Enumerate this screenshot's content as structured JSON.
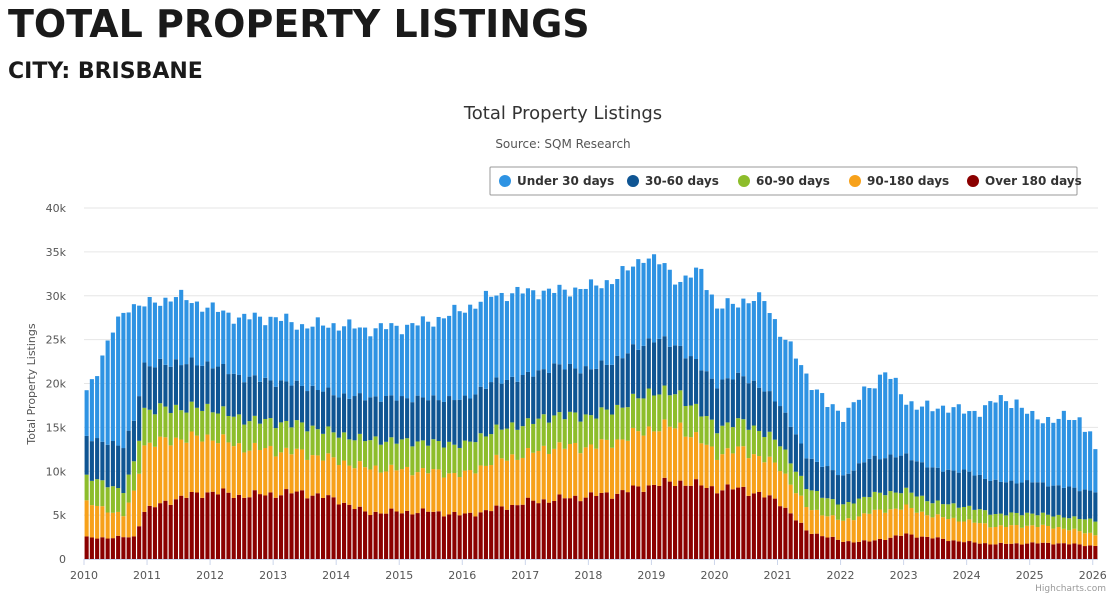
{
  "header": {
    "title": "TOTAL PROPERTY LISTINGS",
    "subtitle": "CITY: BRISBANE"
  },
  "credits": "Highcharts.com",
  "chart_data": {
    "type": "bar",
    "stacked": true,
    "title": "Total Property Listings",
    "subtitle": "Source: SQM Research",
    "ylabel": "Total Property Listings",
    "xlabel": "",
    "ylim": [
      0,
      40000
    ],
    "y_ticks": [
      0,
      5000,
      10000,
      15000,
      20000,
      25000,
      30000,
      35000,
      40000
    ],
    "y_tick_labels": [
      "0",
      "5k",
      "10k",
      "15k",
      "20k",
      "25k",
      "30k",
      "35k",
      "40k"
    ],
    "x_tick_labels": [
      "2010",
      "2011",
      "2012",
      "2013",
      "2014",
      "2015",
      "2016",
      "2017",
      "2018",
      "2019",
      "2020",
      "2021",
      "2022",
      "2023",
      "2024",
      "2025",
      "2026"
    ],
    "grid": true,
    "legend_position": "top-right",
    "start": "2010-01",
    "totals_anchor": [
      [
        "2010-01",
        18900
      ],
      [
        "2010-06",
        26000
      ],
      [
        "2010-09",
        28900
      ],
      [
        "2011-01",
        29000
      ],
      [
        "2011-06",
        30000
      ],
      [
        "2012-01",
        28500
      ],
      [
        "2012-06",
        27500
      ],
      [
        "2013-01",
        27500
      ],
      [
        "2013-06",
        26600
      ],
      [
        "2014-01",
        26700
      ],
      [
        "2014-06",
        26200
      ],
      [
        "2015-01",
        26500
      ],
      [
        "2015-06",
        27000
      ],
      [
        "2016-01",
        28500
      ],
      [
        "2016-06",
        30000
      ],
      [
        "2017-01",
        30500
      ],
      [
        "2017-06",
        30500
      ],
      [
        "2018-01",
        31000
      ],
      [
        "2018-06",
        32000
      ],
      [
        "2018-11",
        34500
      ],
      [
        "2019-03",
        33500
      ],
      [
        "2019-06",
        31500
      ],
      [
        "2019-10",
        33000
      ],
      [
        "2020-01",
        28500
      ],
      [
        "2020-06",
        29500
      ],
      [
        "2020-10",
        29500
      ],
      [
        "2021-01",
        26000
      ],
      [
        "2021-06",
        21000
      ],
      [
        "2021-10",
        17500
      ],
      [
        "2022-01",
        16500
      ],
      [
        "2022-06",
        19500
      ],
      [
        "2022-09",
        21500
      ],
      [
        "2023-01",
        18000
      ],
      [
        "2023-06",
        17000
      ],
      [
        "2023-09",
        17500
      ],
      [
        "2024-01",
        16500
      ],
      [
        "2024-06",
        18000
      ],
      [
        "2024-10",
        18000
      ],
      [
        "2025-01",
        16000
      ],
      [
        "2025-06",
        16000
      ],
      [
        "2025-10",
        16000
      ],
      [
        "2025-12",
        14500
      ],
      [
        "2026-01",
        11800
      ]
    ],
    "series": [
      {
        "name": "Over 180 days",
        "color": "#8b0000",
        "anchors": [
          [
            "2010-01",
            2400
          ],
          [
            "2010-10",
            2500
          ],
          [
            "2010-12",
            5500
          ],
          [
            "2011-06",
            6900
          ],
          [
            "2012-01",
            7700
          ],
          [
            "2012-06",
            7200
          ],
          [
            "2013-06",
            7600
          ],
          [
            "2014-01",
            6700
          ],
          [
            "2014-06",
            5300
          ],
          [
            "2015-06",
            5400
          ],
          [
            "2016-01",
            5000
          ],
          [
            "2016-06",
            5600
          ],
          [
            "2017-01",
            6500
          ],
          [
            "2017-06",
            6800
          ],
          [
            "2018-01",
            7200
          ],
          [
            "2018-06",
            7500
          ],
          [
            "2019-01",
            8500
          ],
          [
            "2019-06",
            8800
          ],
          [
            "2020-01",
            8000
          ],
          [
            "2020-06",
            8000
          ],
          [
            "2021-01",
            6500
          ],
          [
            "2021-06",
            3200
          ],
          [
            "2022-01",
            2000
          ],
          [
            "2022-06",
            2000
          ],
          [
            "2023-01",
            2800
          ],
          [
            "2023-06",
            2400
          ],
          [
            "2024-01",
            1900
          ],
          [
            "2024-06",
            1700
          ],
          [
            "2025-01",
            1800
          ],
          [
            "2025-06",
            1800
          ],
          [
            "2026-01",
            1500
          ]
        ]
      },
      {
        "name": "90-180 days",
        "color": "#f7a11a",
        "anchors": [
          [
            "2010-01",
            4000
          ],
          [
            "2010-08",
            2500
          ],
          [
            "2010-12",
            7500
          ],
          [
            "2011-06",
            6800
          ],
          [
            "2012-01",
            6200
          ],
          [
            "2012-06",
            5600
          ],
          [
            "2013-06",
            4500
          ],
          [
            "2014-01",
            4500
          ],
          [
            "2014-06",
            5100
          ],
          [
            "2015-06",
            4600
          ],
          [
            "2016-01",
            4600
          ],
          [
            "2016-06",
            5500
          ],
          [
            "2017-01",
            5500
          ],
          [
            "2017-06",
            6000
          ],
          [
            "2018-01",
            5600
          ],
          [
            "2018-06",
            6000
          ],
          [
            "2019-01",
            6500
          ],
          [
            "2019-06",
            6300
          ],
          [
            "2020-01",
            4000
          ],
          [
            "2020-06",
            4500
          ],
          [
            "2021-01",
            4000
          ],
          [
            "2021-06",
            2700
          ],
          [
            "2022-01",
            2300
          ],
          [
            "2022-06",
            3300
          ],
          [
            "2023-01",
            3100
          ],
          [
            "2023-06",
            2500
          ],
          [
            "2024-01",
            2400
          ],
          [
            "2024-06",
            2000
          ],
          [
            "2025-01",
            2000
          ],
          [
            "2025-06",
            1800
          ],
          [
            "2026-01",
            1300
          ]
        ]
      },
      {
        "name": "60-90 days",
        "color": "#8dbd2b",
        "anchors": [
          [
            "2010-01",
            3000
          ],
          [
            "2010-08",
            2800
          ],
          [
            "2010-12",
            4000
          ],
          [
            "2011-06",
            3500
          ],
          [
            "2012-01",
            3300
          ],
          [
            "2012-06",
            3200
          ],
          [
            "2013-06",
            3200
          ],
          [
            "2014-01",
            3000
          ],
          [
            "2014-06",
            3200
          ],
          [
            "2015-06",
            3300
          ],
          [
            "2016-01",
            3400
          ],
          [
            "2016-06",
            3500
          ],
          [
            "2017-01",
            3500
          ],
          [
            "2017-06",
            3600
          ],
          [
            "2018-01",
            3500
          ],
          [
            "2018-06",
            3700
          ],
          [
            "2019-01",
            4200
          ],
          [
            "2019-06",
            3600
          ],
          [
            "2020-01",
            3000
          ],
          [
            "2020-06",
            3200
          ],
          [
            "2021-01",
            2700
          ],
          [
            "2021-06",
            2200
          ],
          [
            "2022-01",
            1800
          ],
          [
            "2022-06",
            2000
          ],
          [
            "2023-01",
            1900
          ],
          [
            "2023-06",
            1600
          ],
          [
            "2024-01",
            1600
          ],
          [
            "2024-06",
            1400
          ],
          [
            "2025-01",
            1400
          ],
          [
            "2025-06",
            1300
          ],
          [
            "2026-01",
            1600
          ]
        ]
      },
      {
        "name": "30-60 days",
        "color": "#0f5593",
        "anchors": [
          [
            "2010-01",
            4500
          ],
          [
            "2010-08",
            5000
          ],
          [
            "2010-12",
            5000
          ],
          [
            "2011-06",
            5200
          ],
          [
            "2012-01",
            5000
          ],
          [
            "2012-06",
            4800
          ],
          [
            "2013-06",
            4500
          ],
          [
            "2014-01",
            4500
          ],
          [
            "2014-06",
            4800
          ],
          [
            "2015-06",
            5000
          ],
          [
            "2016-01",
            5200
          ],
          [
            "2016-06",
            5500
          ],
          [
            "2017-01",
            5400
          ],
          [
            "2017-06",
            5600
          ],
          [
            "2018-01",
            5300
          ],
          [
            "2018-06",
            5600
          ],
          [
            "2019-01",
            6000
          ],
          [
            "2019-06",
            5400
          ],
          [
            "2020-01",
            5000
          ],
          [
            "2020-06",
            5300
          ],
          [
            "2021-01",
            4500
          ],
          [
            "2021-06",
            3600
          ],
          [
            "2022-01",
            3300
          ],
          [
            "2022-06",
            4200
          ],
          [
            "2023-01",
            4000
          ],
          [
            "2023-06",
            3800
          ],
          [
            "2024-01",
            4000
          ],
          [
            "2024-06",
            3700
          ],
          [
            "2025-01",
            3600
          ],
          [
            "2025-06",
            3400
          ],
          [
            "2026-01",
            3300
          ]
        ]
      },
      {
        "name": "Under 30 days",
        "color": "#2e93e3",
        "remainder_of_total": true
      }
    ]
  }
}
